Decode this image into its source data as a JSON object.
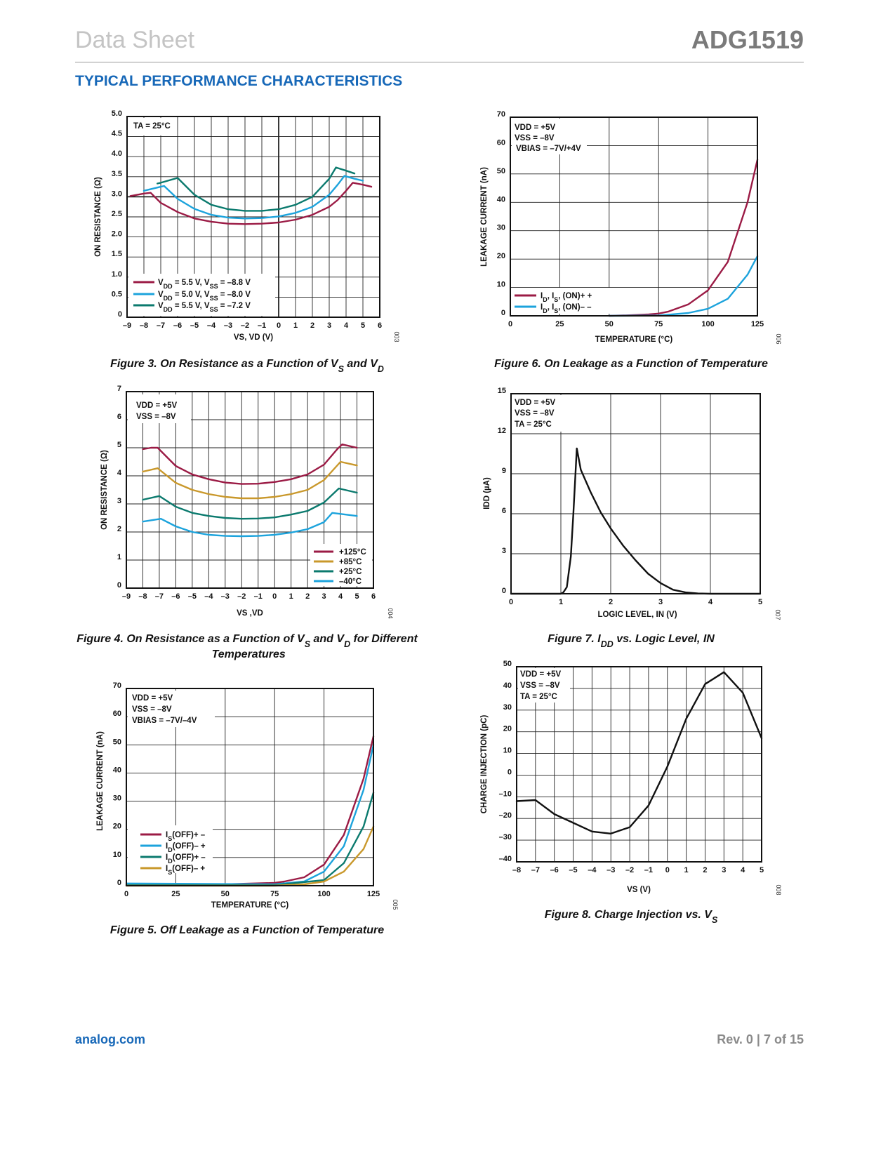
{
  "header": {
    "doc_type": "Data Sheet",
    "part_number": "ADG1519"
  },
  "section_title": "TYPICAL PERFORMANCE CHARACTERISTICS",
  "footer": {
    "website": "analog.com",
    "page_info": "Rev. 0 | 7 of 15"
  },
  "colors": {
    "accent": "#1768b8",
    "red": "#9b1b45",
    "blue": "#1ca3dc",
    "teal": "#0b7a6e",
    "gold": "#c9982b"
  },
  "chart_data": [
    {
      "type": "line",
      "caption": "Figure 3. On Resistance as a Function of VS and VD",
      "figure_id": "003",
      "xlabel": "VS, VD (V)",
      "ylabel": "ON RESISTANCE (Ω)",
      "xlim": [
        -9,
        6
      ],
      "ylim": [
        0,
        5
      ],
      "xticks": [
        -9,
        -8,
        -7,
        -6,
        -5,
        -4,
        -3,
        -2,
        -1,
        0,
        1,
        2,
        3,
        4,
        5,
        6
      ],
      "xtick_labels": [
        "–9",
        "–8",
        "–7",
        "–6",
        "–5",
        "–4",
        "–3",
        "–2",
        "–1",
        "0",
        "1",
        "2",
        "3",
        "4",
        "5",
        "6"
      ],
      "yticks": [
        0,
        0.5,
        1,
        1.5,
        2,
        2.5,
        3,
        3.5,
        4,
        4.5,
        5
      ],
      "ytick_labels": [
        "0",
        "0.5",
        "1.0",
        "1.5",
        "2.0",
        "2.5",
        "3.0",
        "3.5",
        "4.0",
        "4.5",
        "5.0"
      ],
      "grid": true,
      "reference_lines": {
        "x": 0,
        "y": 3
      },
      "annotations": [
        "TA = 25°C"
      ],
      "legend_position": "bottom-left",
      "series": [
        {
          "name": "VDD = 5.5 V, VSS = –8.8 V",
          "color": "#9b1b45",
          "x": [
            -8.8,
            -8,
            -7.6,
            -7,
            -6,
            -5,
            -4,
            -3,
            -2,
            -1,
            0,
            1,
            2,
            3,
            3.5,
            4,
            4.4,
            5,
            5.5
          ],
          "y": [
            3.02,
            3.08,
            3.1,
            2.85,
            2.62,
            2.46,
            2.38,
            2.33,
            2.32,
            2.33,
            2.36,
            2.43,
            2.55,
            2.75,
            2.92,
            3.15,
            3.35,
            3.3,
            3.25
          ]
        },
        {
          "name": "VDD = 5.0 V, VSS  = –8.0 V",
          "color": "#1ca3dc",
          "x": [
            -8,
            -7,
            -6.8,
            -6,
            -5,
            -4,
            -3,
            -2,
            -1,
            0,
            1,
            2,
            3,
            3.5,
            3.9,
            4.5,
            5
          ],
          "y": [
            3.15,
            3.25,
            3.27,
            2.95,
            2.7,
            2.55,
            2.48,
            2.46,
            2.47,
            2.51,
            2.6,
            2.75,
            3.05,
            3.3,
            3.52,
            3.45,
            3.4
          ]
        },
        {
          "name": "VDD = 5.5 V, VSS = –7.2 V",
          "color": "#0b7a6e",
          "x": [
            -7.2,
            -7,
            -6,
            -5,
            -4,
            -3,
            -2,
            -1,
            0,
            1,
            2,
            3,
            3.4,
            4,
            4.5
          ],
          "y": [
            3.33,
            3.35,
            3.47,
            3.05,
            2.8,
            2.69,
            2.65,
            2.65,
            2.69,
            2.8,
            3.0,
            3.45,
            3.73,
            3.65,
            3.58
          ]
        }
      ]
    },
    {
      "type": "line",
      "caption": "Figure 6. On Leakage as a Function of Temperature",
      "figure_id": "006",
      "xlabel": "TEMPERATURE (°C)",
      "ylabel": "LEAKAGE CURRENT (nA)",
      "xlim": [
        0,
        125
      ],
      "ylim": [
        0,
        70
      ],
      "xticks": [
        0,
        25,
        50,
        75,
        100,
        125
      ],
      "xtick_labels": [
        "0",
        "25",
        "50",
        "75",
        "100",
        "125"
      ],
      "yticks": [
        0,
        10,
        20,
        30,
        40,
        50,
        60,
        70
      ],
      "ytick_labels": [
        "0",
        "10",
        "20",
        "30",
        "40",
        "50",
        "60",
        "70"
      ],
      "grid": true,
      "annotations": [
        "VDD = +5V",
        "VSS  = –8V",
        "VBIAS = –7V/+4V"
      ],
      "legend_position": "bottom-left",
      "series": [
        {
          "name": "ID, IS, (ON)+ +",
          "color": "#9b1b45",
          "x": [
            50,
            60,
            70,
            75,
            80,
            90,
            100,
            110,
            120,
            125
          ],
          "y": [
            0,
            0.2,
            0.5,
            0.8,
            1.5,
            4,
            9,
            19,
            40,
            55
          ]
        },
        {
          "name": "ID, IS, (ON)– –",
          "color": "#1ca3dc",
          "x": [
            50,
            75,
            90,
            100,
            110,
            120,
            125
          ],
          "y": [
            0,
            0.1,
            1,
            2.5,
            6,
            14.5,
            21
          ]
        }
      ]
    },
    {
      "type": "line",
      "caption": "Figure 4. On Resistance as a Function of VS and VD for Different Temperatures",
      "figure_id": "004",
      "xlabel": "VS ,VD",
      "ylabel": "ON RESISTANCE (Ω)",
      "xlim": [
        -9,
        6
      ],
      "ylim": [
        0,
        7
      ],
      "xticks": [
        -9,
        -8,
        -7,
        -6,
        -5,
        -4,
        -3,
        -2,
        -1,
        0,
        1,
        2,
        3,
        4,
        5,
        6
      ],
      "xtick_labels": [
        "–9",
        "–8",
        "–7",
        "–6",
        "–5",
        "–4",
        "–3",
        "–2",
        "–1",
        "0",
        "1",
        "2",
        "3",
        "4",
        "5",
        "6"
      ],
      "yticks": [
        0,
        1,
        2,
        3,
        4,
        5,
        6,
        7
      ],
      "ytick_labels": [
        "0",
        "1",
        "2",
        "3",
        "4",
        "5",
        "6",
        "7"
      ],
      "grid": true,
      "annotations": [
        "VDD = +5V",
        "VSS = –8V"
      ],
      "legend_position": "bottom-right",
      "series": [
        {
          "name": "+125°C",
          "color": "#9b1b45",
          "x": [
            -8,
            -7.5,
            -7.1,
            -6,
            -5,
            -4,
            -3,
            -2,
            -1,
            0,
            1,
            2,
            3,
            3.8,
            4.1,
            5
          ],
          "y": [
            4.95,
            5.0,
            5.0,
            4.35,
            4.05,
            3.88,
            3.76,
            3.71,
            3.72,
            3.78,
            3.88,
            4.05,
            4.4,
            4.95,
            5.12,
            5.0
          ]
        },
        {
          "name": "+85°C",
          "color": "#c9982b",
          "x": [
            -8,
            -7.1,
            -6,
            -5,
            -4,
            -3,
            -2,
            -1,
            0,
            1,
            2,
            3,
            4,
            5
          ],
          "y": [
            4.15,
            4.27,
            3.75,
            3.5,
            3.35,
            3.25,
            3.2,
            3.2,
            3.25,
            3.35,
            3.5,
            3.85,
            4.5,
            4.37
          ]
        },
        {
          "name": "+25°C",
          "color": "#0b7a6e",
          "x": [
            -8,
            -7,
            -6,
            -5,
            -4,
            -3,
            -2,
            -1,
            0,
            1,
            2,
            3,
            3.9,
            5
          ],
          "y": [
            3.15,
            3.28,
            2.9,
            2.68,
            2.57,
            2.5,
            2.47,
            2.48,
            2.52,
            2.62,
            2.75,
            3.05,
            3.55,
            3.4
          ]
        },
        {
          "name": "–40°C",
          "color": "#1ca3dc",
          "x": [
            -8,
            -6.9,
            -6,
            -5,
            -4,
            -3,
            -2,
            -1,
            0,
            1,
            2,
            3,
            3.5,
            5
          ],
          "y": [
            2.37,
            2.47,
            2.2,
            2.0,
            1.9,
            1.86,
            1.85,
            1.86,
            1.9,
            1.98,
            2.1,
            2.35,
            2.68,
            2.57
          ]
        }
      ]
    },
    {
      "type": "line",
      "caption": "Figure 7. IDD vs. Logic Level, IN",
      "figure_id": "007",
      "xlabel": "LOGIC LEVEL, IN (V)",
      "ylabel": "IDD (µA)",
      "xlim": [
        0,
        5
      ],
      "ylim": [
        0,
        15
      ],
      "xticks": [
        0,
        1,
        2,
        3,
        4,
        5
      ],
      "xtick_labels": [
        "0",
        "1",
        "2",
        "3",
        "4",
        "5"
      ],
      "yticks": [
        0,
        3,
        6,
        9,
        12,
        15
      ],
      "ytick_labels": [
        "0",
        "3",
        "6",
        "9",
        "12",
        "15"
      ],
      "grid": true,
      "annotations": [
        "VDD = +5V",
        "VSS = –8V",
        "TA = 25°C"
      ],
      "series": [
        {
          "color": "#111111",
          "x": [
            0,
            1,
            1.05,
            1.12,
            1.2,
            1.25,
            1.32,
            1.4,
            1.6,
            1.8,
            2,
            2.25,
            2.5,
            2.75,
            3,
            3.25,
            3.5,
            3.75,
            4,
            5
          ],
          "y": [
            0,
            0,
            0.1,
            0.5,
            2.8,
            6,
            10.9,
            9.3,
            7.6,
            6.1,
            4.9,
            3.6,
            2.5,
            1.5,
            0.8,
            0.3,
            0.1,
            0.02,
            0,
            0
          ]
        }
      ]
    },
    {
      "type": "line",
      "caption": "Figure 5. Off Leakage as a Function of Temperature",
      "figure_id": "005",
      "xlabel": "TEMPERATURE (°C)",
      "ylabel": "LEAKAGE CURRENT (nA)",
      "xlim": [
        0,
        125
      ],
      "ylim": [
        0,
        70
      ],
      "xticks": [
        0,
        25,
        50,
        75,
        100,
        125
      ],
      "xtick_labels": [
        "0",
        "25",
        "50",
        "75",
        "100",
        "125"
      ],
      "yticks": [
        0,
        10,
        20,
        30,
        40,
        50,
        60,
        70
      ],
      "ytick_labels": [
        "0",
        "10",
        "20",
        "30",
        "40",
        "50",
        "60",
        "70"
      ],
      "grid": true,
      "annotations": [
        "VDD = +5V",
        "VSS = –8V",
        "VBIAS = –7V/–4V"
      ],
      "legend_position": "bottom-left",
      "series": [
        {
          "name": "IS(OFF)+ –",
          "color": "#9b1b45",
          "x": [
            0,
            50,
            75,
            80,
            90,
            100,
            110,
            120,
            125
          ],
          "y": [
            0.3,
            0.5,
            1,
            1.5,
            3,
            7.5,
            18,
            38,
            53
          ]
        },
        {
          "name": "ID(OFF)– +",
          "color": "#1ca3dc",
          "x": [
            0,
            50,
            75,
            90,
            100,
            110,
            120,
            125
          ],
          "y": [
            0.8,
            0.6,
            0.5,
            1.5,
            5,
            14,
            34,
            50
          ]
        },
        {
          "name": "ID(OFF)+ –",
          "color": "#0b7a6e",
          "x": [
            0,
            75,
            100,
            110,
            120,
            125
          ],
          "y": [
            0.2,
            0.2,
            2,
            8,
            21,
            33
          ]
        },
        {
          "name": "IS(OFF)– +",
          "color": "#c9982b",
          "x": [
            0,
            75,
            90,
            100,
            110,
            120,
            125
          ],
          "y": [
            0,
            0,
            0.5,
            1.5,
            5,
            13,
            21
          ]
        }
      ]
    },
    {
      "type": "line",
      "caption": "Figure 8. Charge Injection vs. VS",
      "figure_id": "008",
      "xlabel": "VS (V)",
      "ylabel": "CHARGE INJECTION (pC)",
      "xlim": [
        -8,
        5
      ],
      "ylim": [
        -40,
        50
      ],
      "xticks": [
        -8,
        -7,
        -6,
        -5,
        -4,
        -3,
        -2,
        -1,
        0,
        1,
        2,
        3,
        4,
        5
      ],
      "xtick_labels": [
        "–8",
        "–7",
        "–6",
        "–5",
        "–4",
        "–3",
        "–2",
        "–1",
        "0",
        "1",
        "2",
        "3",
        "4",
        "5"
      ],
      "yticks": [
        -40,
        -30,
        -20,
        -10,
        0,
        10,
        20,
        30,
        40,
        50
      ],
      "ytick_labels": [
        "–40",
        "–30",
        "–20",
        "–10",
        "0",
        "10",
        "20",
        "30",
        "40",
        "50"
      ],
      "grid": true,
      "annotations": [
        "VDD = +5V",
        "VSS = –8V",
        "TA = 25°C"
      ],
      "series": [
        {
          "color": "#111111",
          "x": [
            -8,
            -7,
            -6,
            -5,
            -4,
            -3,
            -2,
            -1,
            0,
            1,
            2,
            3,
            4,
            5
          ],
          "y": [
            -12,
            -11.5,
            -18,
            -22,
            -26,
            -27,
            -24,
            -14,
            4,
            26,
            42,
            47.5,
            38,
            17
          ]
        }
      ]
    }
  ]
}
